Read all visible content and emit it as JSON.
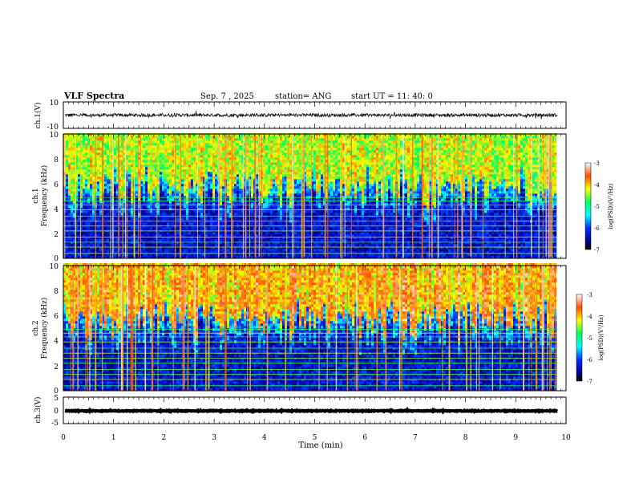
{
  "header": {
    "title": "VLF Spectra",
    "date": "Sep. 7  , 2025",
    "station": "station= ANG",
    "start": "start  UT  =   11: 40: 0"
  },
  "chart_data": [
    {
      "type": "line",
      "name": "ch1-waveform",
      "ylabel": "ch.1(V)",
      "ylim": [
        -10,
        10
      ],
      "yticks": [
        "10",
        "-10"
      ],
      "baseline": 0,
      "noise_amplitude": 1.2,
      "xlim": [
        0,
        9.83
      ]
    },
    {
      "type": "heatmap",
      "name": "ch1-spectrogram",
      "ylabel_line1": "ch.1",
      "ylabel_line2": "Frequency (kHz)",
      "ylim": [
        0,
        10
      ],
      "yticks": [
        "0",
        "2",
        "4",
        "6",
        "8",
        "10"
      ],
      "xlim": [
        0,
        9.83
      ],
      "colorbar": {
        "label": "log(PSD)(V²/Hz)",
        "range": [
          -7,
          -3
        ],
        "ticks": [
          "-3",
          "-4",
          "-5",
          "-6",
          "-7"
        ]
      },
      "background_level": -6.3,
      "band_levels": {
        "high_freq_above_6kHz": -4.6
      }
    },
    {
      "type": "heatmap",
      "name": "ch2-spectrogram",
      "ylabel_line1": "ch.2",
      "ylabel_line2": "Frequency (kHz)",
      "ylim": [
        0,
        10
      ],
      "yticks": [
        "0",
        "2",
        "4",
        "6",
        "8",
        "10"
      ],
      "xlim": [
        0,
        9.83
      ],
      "colorbar": {
        "label": "log(PSD)(V²/Hz)",
        "range": [
          -7,
          -3
        ],
        "ticks": [
          "-3",
          "-4",
          "-5",
          "-6",
          "-7"
        ]
      },
      "background_level": -6.3,
      "band_levels": {
        "high_freq_above_6kHz": -4.3
      }
    },
    {
      "type": "line",
      "name": "ch3-waveform",
      "ylabel": "ch.3(V)",
      "ylim": [
        -5,
        5
      ],
      "yticks": [
        "5",
        "0",
        "-5"
      ],
      "baseline": -0.2,
      "noise_amplitude": 0.15,
      "xlim": [
        0,
        9.83
      ]
    }
  ],
  "xaxis": {
    "label": "Time (min)",
    "range": [
      0,
      10
    ],
    "ticks": [
      "0",
      "1",
      "2",
      "3",
      "4",
      "5",
      "6",
      "7",
      "8",
      "9",
      "10"
    ]
  },
  "colors": {
    "waveform": "#000000",
    "background": "#ffffff"
  }
}
